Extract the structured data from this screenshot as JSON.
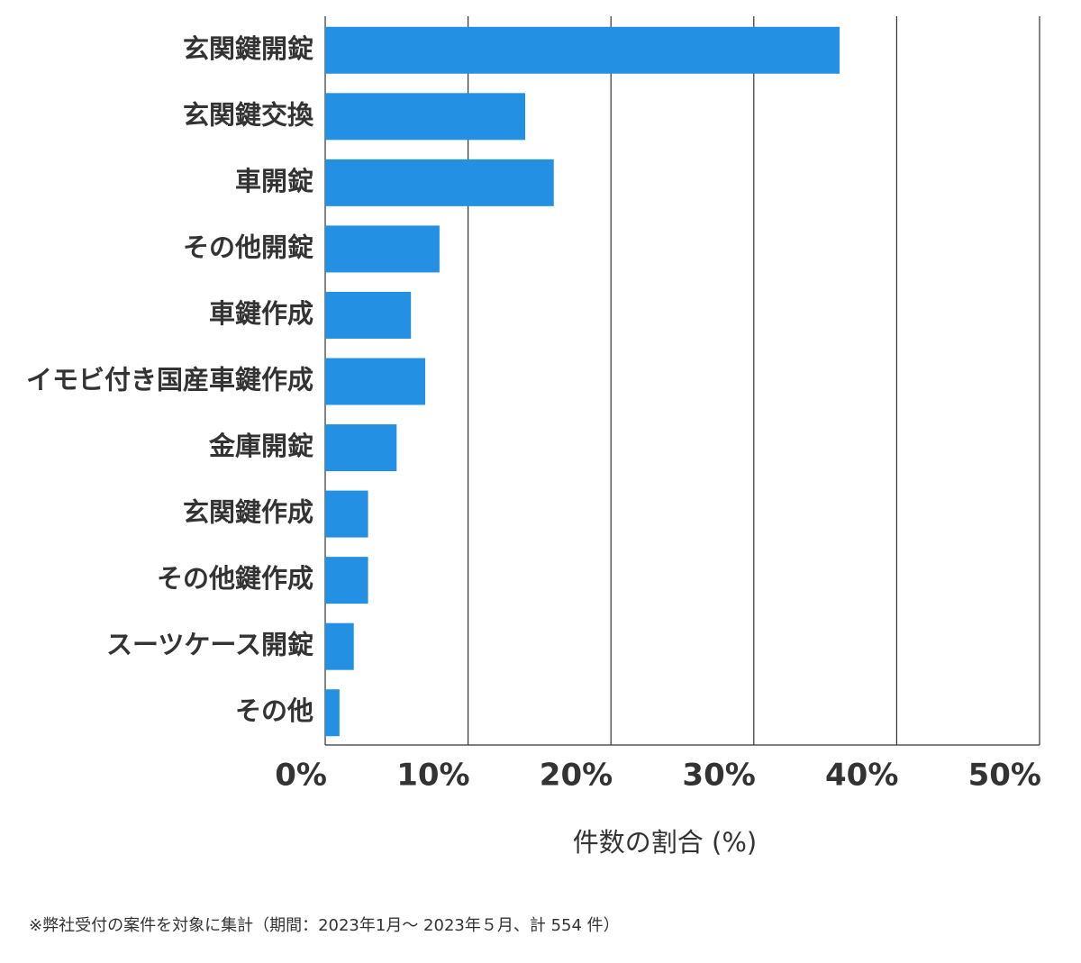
{
  "chart_data": {
    "type": "bar",
    "orientation": "horizontal",
    "categories": [
      "玄関鍵開錠",
      "玄関鍵交換",
      "車開錠",
      "その他開錠",
      "車鍵作成",
      "イモビ付き国産車鍵作成",
      "金庫開錠",
      "玄関鍵作成",
      "その他鍵作成",
      "スーツケース開錠",
      "その他"
    ],
    "values": [
      36,
      14,
      16,
      8,
      6,
      7,
      5,
      3,
      3,
      2,
      1
    ],
    "color": "#2490e3",
    "xlim": [
      0,
      50
    ],
    "xticks": [
      {
        "value": 0,
        "label": "0%"
      },
      {
        "value": 10,
        "label": "10%"
      },
      {
        "value": 20,
        "label": "20%"
      },
      {
        "value": 30,
        "label": "30%"
      },
      {
        "value": 40,
        "label": "40%"
      },
      {
        "value": 50,
        "label": "50%"
      }
    ],
    "xlabel": "件数の割合 (%)",
    "grid": true,
    "footnote": "※弊社受付の案件を対象に集計（期間：2023年1月～ 2023年５月、計 554 件）"
  }
}
